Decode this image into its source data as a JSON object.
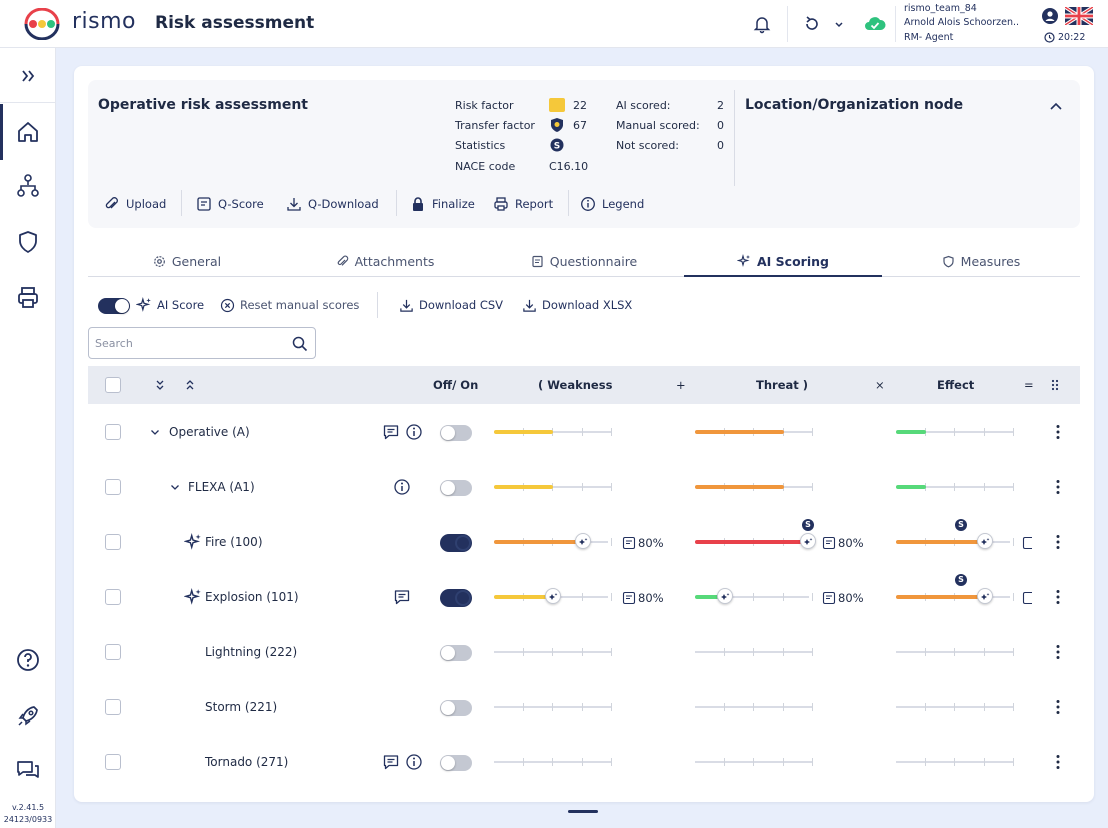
{
  "app": {
    "logo_text": "rismo",
    "page_title": "Risk assessment",
    "colors": {
      "navy": "#23315e",
      "yellow": "#f5c83a",
      "orange": "#f0963c",
      "red": "#e8414a",
      "green": "#57d97a",
      "cloud": "#2ec27e"
    }
  },
  "user": {
    "name": "rismo_team_84",
    "full_name": "Arnold Alois Schoorzen..",
    "role": "RM- Agent",
    "time": "20:22"
  },
  "version": {
    "line1": "v.2.41.5",
    "line2": "24123/0933"
  },
  "header": {
    "title": "Operative risk assessment",
    "stats": [
      {
        "label": "Risk factor",
        "value": "22",
        "icon": "yellow-square"
      },
      {
        "label": "Transfer factor",
        "value": "67",
        "icon": "shield-badge-icon"
      },
      {
        "label": "Statistics",
        "value": "",
        "icon": "statistics-badge-icon"
      },
      {
        "label": "NACE code",
        "value": "C16.10",
        "icon": ""
      }
    ],
    "scores": [
      {
        "label": "AI scored:",
        "value": "2"
      },
      {
        "label": "Manual scored:",
        "value": "0"
      },
      {
        "label": "Not scored:",
        "value": "0"
      }
    ],
    "location_title": "Location/Organization node",
    "tools": {
      "upload": "Upload",
      "qscore": "Q-Score",
      "qdownload": "Q-Download",
      "finalize": "Finalize",
      "report": "Report",
      "legend": "Legend"
    }
  },
  "tabs": {
    "general": "General",
    "attachments": "Attachments",
    "questionnaire": "Questionnaire",
    "ai_scoring": "AI Scoring",
    "measures": "Measures"
  },
  "actions": {
    "ai_score": "AI Score",
    "reset": "Reset manual scores",
    "csv": "Download CSV",
    "xlsx": "Download XLSX"
  },
  "search": {
    "placeholder": "Search",
    "value": ""
  },
  "table": {
    "headers": {
      "off_on": "Off/ On",
      "weakness": "( Weakness",
      "plus": "+",
      "threat": "Threat )",
      "times": "×",
      "effect": "Effect",
      "equals": "="
    },
    "rows": [
      {
        "label": "Operative (A)",
        "enabled": false,
        "weakness": 0.5,
        "threat": 0.75,
        "effect": 0.25,
        "weakness_color": "yellow",
        "threat_color": "orange",
        "effect_color": "green"
      },
      {
        "label": "FLEXA (A1)",
        "enabled": false,
        "weakness": 0.5,
        "threat": 0.75,
        "effect": 0.25,
        "weakness_color": "yellow",
        "threat_color": "orange",
        "effect_color": "green"
      },
      {
        "label": "Fire (100)",
        "enabled": true,
        "weakness": 0.75,
        "threat": 0.96,
        "effect": 0.75,
        "weakness_pct": "80%",
        "threat_pct": "80%",
        "weakness_color": "orange",
        "threat_color": "red",
        "effect_color": "orange"
      },
      {
        "label": "Explosion (101)",
        "enabled": true,
        "weakness": 0.5,
        "threat": 0.25,
        "effect": 0.75,
        "weakness_pct": "80%",
        "threat_pct": "80%",
        "weakness_color": "yellow",
        "threat_color": "green",
        "effect_color": "orange"
      },
      {
        "label": "Lightning (222)",
        "enabled": false
      },
      {
        "label": "Storm (221)",
        "enabled": false
      },
      {
        "label": "Tornado (271)",
        "enabled": false
      }
    ]
  }
}
